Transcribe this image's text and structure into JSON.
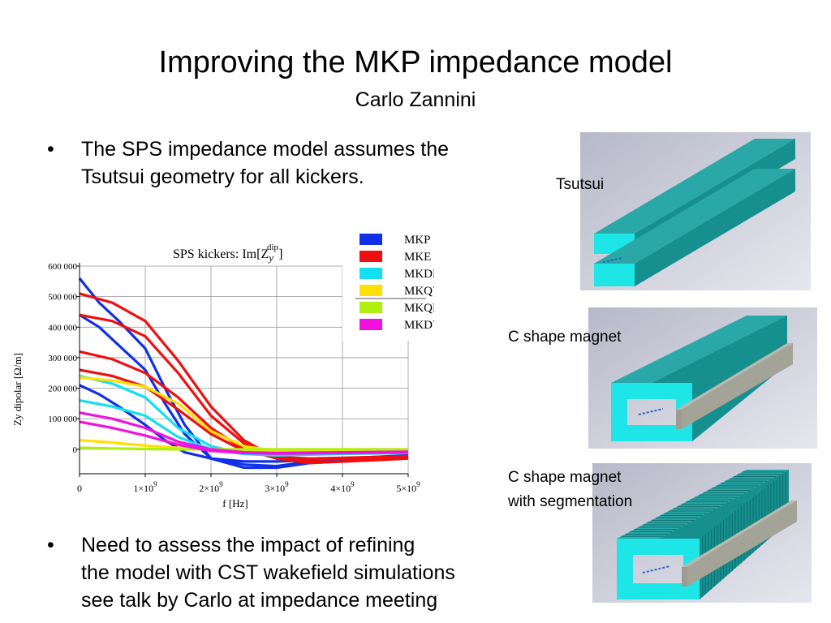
{
  "slide": {
    "title": "Improving the MKP impedance model",
    "subtitle": "Carlo Zannini",
    "bullets": [
      {
        "marker": "•",
        "lines": [
          "The SPS impedance model assumes the",
          "Tsutsui geometry for all kickers."
        ]
      },
      {
        "marker": "•",
        "lines": [
          "Need to assess the impact of refining",
          "the model with CST wakefield simulations",
          "see talk by Carlo at impedance meeting"
        ]
      }
    ],
    "captions": {
      "tsutsui": "Tsutsui",
      "c_shape": "C shape magnet",
      "c_shape_seg_line1": "C shape magnet",
      "c_shape_seg_line2": "with segmentation"
    },
    "colors": {
      "magnet": "#29b3b3",
      "magnet_face": "#1ce6e6",
      "conductor": "#a8a89a",
      "background_panel": "#c7c9d6"
    }
  },
  "chart_data": {
    "type": "line",
    "title": "SPS kickers: Im[Z",
    "title_sub": "y",
    "title_sup": "dip",
    "title_end": "]",
    "xlabel": "f [Hz]",
    "ylabel": "Zy dipolar [Ω/m]",
    "xlim": [
      0,
      5000000000.0
    ],
    "ylim": [
      -80000,
      600000
    ],
    "xticks": [
      {
        "v": 0,
        "label": "0"
      },
      {
        "v": 1000000000.0,
        "label": "1×10",
        "sup": "9"
      },
      {
        "v": 2000000000.0,
        "label": "2×10",
        "sup": "9"
      },
      {
        "v": 3000000000.0,
        "label": "3×10",
        "sup": "9"
      },
      {
        "v": 4000000000.0,
        "label": "4×10",
        "sup": "9"
      },
      {
        "v": 5000000000.0,
        "label": "5×10",
        "sup": "9"
      }
    ],
    "yticks": [
      {
        "v": 0,
        "label": "0"
      },
      {
        "v": 100000,
        "label": "100 000"
      },
      {
        "v": 200000,
        "label": "200 000"
      },
      {
        "v": 300000,
        "label": "300 000"
      },
      {
        "v": 400000,
        "label": "400 000"
      },
      {
        "v": 500000,
        "label": "500 000"
      },
      {
        "v": 600000,
        "label": "600 000"
      }
    ],
    "grid": true,
    "legend_position": "top-right",
    "series": [
      {
        "name": "MKP",
        "color": "#1030e8",
        "curves": [
          {
            "x": [
              0,
              300000000.0,
              600000000.0,
              1000000000.0,
              1300000000.0,
              1600000000.0,
              2000000000.0,
              2500000000.0,
              3000000000.0,
              3500000000.0,
              4000000000.0,
              5000000000.0
            ],
            "y": [
              560000,
              480000,
              420000,
              330000,
              200000,
              80000,
              -30000,
              -60000,
              -60000,
              -45000,
              -35000,
              -25000
            ]
          },
          {
            "x": [
              0,
              300000000.0,
              600000000.0,
              1000000000.0,
              1300000000.0,
              1600000000.0,
              2000000000.0,
              2500000000.0,
              3000000000.0,
              3500000000.0,
              4000000000.0,
              5000000000.0
            ],
            "y": [
              440000,
              400000,
              340000,
              260000,
              150000,
              50000,
              -30000,
              -50000,
              -55000,
              -40000,
              -30000,
              -20000
            ]
          },
          {
            "x": [
              0,
              300000000.0,
              600000000.0,
              1000000000.0,
              1300000000.0,
              1600000000.0,
              2000000000.0,
              2500000000.0,
              3000000000.0,
              3500000000.0,
              4000000000.0,
              5000000000.0
            ],
            "y": [
              210000,
              180000,
              140000,
              80000,
              30000,
              -10000,
              -30000,
              -40000,
              -40000,
              -35000,
              -30000,
              -25000
            ]
          }
        ]
      },
      {
        "name": "MKE",
        "color": "#ee1010",
        "curves": [
          {
            "x": [
              0,
              500000000.0,
              1000000000.0,
              1500000000.0,
              2000000000.0,
              2500000000.0,
              3000000000.0,
              3500000000.0,
              4000000000.0,
              4500000000.0,
              5000000000.0
            ],
            "y": [
              510000,
              480000,
              420000,
              290000,
              140000,
              30000,
              -30000,
              -45000,
              -40000,
              -35000,
              -30000
            ]
          },
          {
            "x": [
              0,
              500000000.0,
              1000000000.0,
              1500000000.0,
              2000000000.0,
              2500000000.0,
              3000000000.0,
              3500000000.0,
              4000000000.0,
              4500000000.0,
              5000000000.0
            ],
            "y": [
              440000,
              420000,
              370000,
              250000,
              110000,
              20000,
              -30000,
              -45000,
              -40000,
              -35000,
              -30000
            ]
          },
          {
            "x": [
              0,
              500000000.0,
              1000000000.0,
              1500000000.0,
              2000000000.0,
              2500000000.0,
              3000000000.0,
              3500000000.0,
              4000000000.0,
              4500000000.0,
              5000000000.0
            ],
            "y": [
              320000,
              295000,
              250000,
              170000,
              70000,
              0,
              -30000,
              -35000,
              -30000,
              -28000,
              -25000
            ]
          },
          {
            "x": [
              0,
              500000000.0,
              1000000000.0,
              1500000000.0,
              2000000000.0,
              2500000000.0,
              3000000000.0,
              3500000000.0,
              4000000000.0,
              4500000000.0,
              5000000000.0
            ],
            "y": [
              260000,
              240000,
              205000,
              130000,
              50000,
              -5000,
              -25000,
              -30000,
              -28000,
              -25000,
              -22000
            ]
          }
        ]
      },
      {
        "name": "MKDH",
        "color": "#10e0f0",
        "curves": [
          {
            "x": [
              0,
              500000000.0,
              1000000000.0,
              1500000000.0,
              2000000000.0,
              2500000000.0,
              3000000000.0,
              4000000000.0,
              5000000000.0
            ],
            "y": [
              240000,
              215000,
              170000,
              70000,
              10000,
              -15000,
              -20000,
              -15000,
              -12000
            ]
          },
          {
            "x": [
              0,
              500000000.0,
              1000000000.0,
              1500000000.0,
              2000000000.0,
              2500000000.0,
              3000000000.0,
              4000000000.0,
              5000000000.0
            ],
            "y": [
              160000,
              140000,
              110000,
              40000,
              0,
              -15000,
              -18000,
              -12000,
              -10000
            ]
          }
        ]
      },
      {
        "name": "MKQV",
        "color": "#ffe000",
        "curves": [
          {
            "x": [
              0,
              500000000.0,
              1000000000.0,
              1500000000.0,
              2000000000.0,
              2500000000.0,
              3000000000.0,
              4000000000.0,
              5000000000.0
            ],
            "y": [
              30000,
              22000,
              12000,
              5000,
              0,
              -3000,
              -4000,
              -4000,
              -4000
            ]
          },
          {
            "x": [
              0,
              500000000.0,
              1000000000.0,
              1500000000.0,
              2000000000.0,
              2500000000.0,
              3000000000.0,
              4000000000.0,
              5000000000.0
            ],
            "y": [
              235000,
              225000,
              205000,
              150000,
              60000,
              10000,
              -5000,
              -5000,
              -5000
            ]
          }
        ]
      },
      {
        "name": "MKQH",
        "color": "#b0f010",
        "curves": [
          {
            "x": [
              0,
              500000000.0,
              1000000000.0,
              1500000000.0,
              2000000000.0,
              3000000000.0,
              4000000000.0,
              5000000000.0
            ],
            "y": [
              5000,
              3000,
              1000,
              0,
              0,
              0,
              0,
              0
            ]
          }
        ]
      },
      {
        "name": "MKDV",
        "color": "#f010e0",
        "curves": [
          {
            "x": [
              0,
              500000000.0,
              1000000000.0,
              1500000000.0,
              2000000000.0,
              2500000000.0,
              3000000000.0,
              4000000000.0,
              5000000000.0
            ],
            "y": [
              120000,
              100000,
              70000,
              25000,
              0,
              -10000,
              -12000,
              -10000,
              -8000
            ]
          },
          {
            "x": [
              0,
              500000000.0,
              1000000000.0,
              1500000000.0,
              2000000000.0,
              2500000000.0,
              3000000000.0,
              4000000000.0,
              5000000000.0
            ],
            "y": [
              90000,
              70000,
              45000,
              15000,
              -5000,
              -12000,
              -14000,
              -12000,
              -10000
            ]
          }
        ]
      }
    ]
  }
}
